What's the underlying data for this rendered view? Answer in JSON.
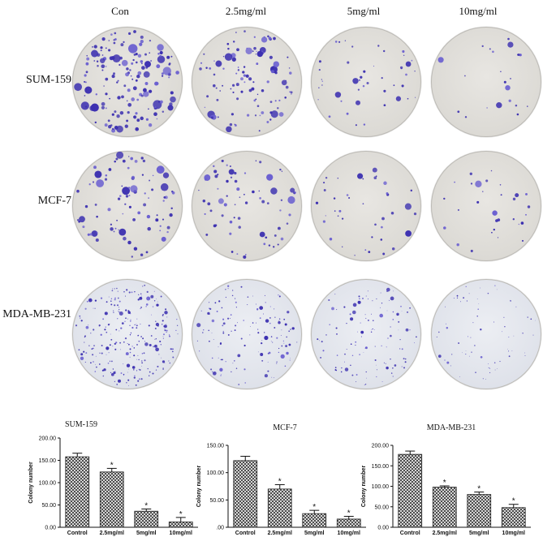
{
  "figure": {
    "column_labels": [
      "Con",
      "2.5mg/ml",
      "5mg/ml",
      "10mg/ml"
    ],
    "row_labels": [
      "SUM-159",
      "MCF-7",
      "MDA-MB-231"
    ]
  },
  "colors": {
    "colony": "#3b2fb0",
    "colony_light": "#6a5fd0",
    "bar_edge": "#222222",
    "axis": "#111111"
  },
  "chart_data": [
    {
      "type": "bar",
      "title": "SUM-159",
      "ylabel": "Colony number",
      "categories": [
        "Control",
        "2.5mg/ml",
        "5mg/ml",
        "10mg/ml"
      ],
      "values": [
        158,
        124,
        36,
        12
      ],
      "errors": [
        8,
        8,
        5,
        10
      ],
      "significance": [
        "",
        "*",
        "*",
        "*"
      ],
      "ylim": [
        0,
        200
      ],
      "yticks": [
        "0.00",
        "50.00",
        "100.00",
        "150.00",
        "200.00"
      ],
      "ytick_values": [
        0,
        50,
        100,
        150,
        200
      ]
    },
    {
      "type": "bar",
      "title": "MCF-7",
      "ylabel": "Colony number",
      "categories": [
        "Control",
        "2.5mg/ml",
        "5mg/ml",
        "10mg/ml"
      ],
      "values": [
        122,
        70,
        25,
        15
      ],
      "errors": [
        8,
        8,
        6,
        5
      ],
      "significance": [
        "",
        "*",
        "*",
        "*"
      ],
      "ylim": [
        0,
        150
      ],
      "yticks": [
        ".00",
        "50.00",
        "100.00",
        "150.00"
      ],
      "ytick_values": [
        0,
        50,
        100,
        150
      ]
    },
    {
      "type": "bar",
      "title": "MDA-MB-231",
      "ylabel": "Colony number",
      "categories": [
        "Control",
        "2.5mg/ml",
        "5mg/ml",
        "10mg/ml"
      ],
      "values": [
        178,
        98,
        80,
        48
      ],
      "errors": [
        8,
        3,
        6,
        8
      ],
      "significance": [
        "",
        "*",
        "*",
        "*"
      ],
      "ylim": [
        0,
        200
      ],
      "yticks": [
        "0.00",
        "50.00",
        "100.00",
        "150.00",
        "200.00"
      ],
      "ytick_values": [
        0,
        50,
        100,
        150,
        200
      ]
    }
  ]
}
